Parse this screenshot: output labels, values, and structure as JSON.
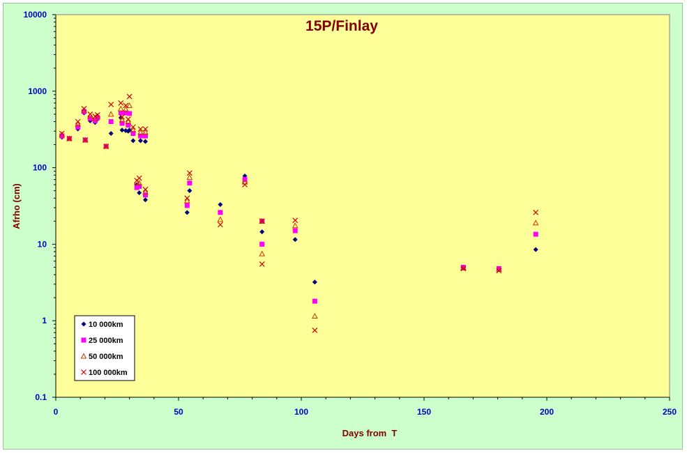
{
  "chart_data": {
    "type": "scatter",
    "title": "15P/Finlay",
    "xlabel": "Days from  T",
    "ylabel": "Afrho (cm)",
    "xlim": [
      0,
      250
    ],
    "ylim": [
      0.1,
      10000
    ],
    "yscale": "log",
    "xticks": [
      0,
      50,
      100,
      150,
      200,
      250
    ],
    "yticks": [
      0.1,
      1,
      10,
      100,
      1000,
      10000
    ],
    "ytick_labels": [
      "0.1",
      "1",
      "10",
      "100",
      "1000",
      "10000"
    ],
    "grid": false,
    "legend_position": "bottom-left",
    "plot_background": "#ffff99",
    "outer_background": "#ccffcc",
    "series": [
      {
        "name": "10 000km",
        "marker": "diamond",
        "color": "#000080",
        "points": [
          [
            2.5,
            250
          ],
          [
            5.5,
            240
          ],
          [
            9,
            320
          ],
          [
            11.5,
            520
          ],
          [
            12,
            230
          ],
          [
            14,
            410
          ],
          [
            16,
            390
          ],
          [
            17,
            430
          ],
          [
            20.5,
            190
          ],
          [
            22.5,
            280
          ],
          [
            26.5,
            450
          ],
          [
            27,
            310
          ],
          [
            28.5,
            305
          ],
          [
            29.5,
            300
          ],
          [
            30,
            310
          ],
          [
            31.5,
            225
          ],
          [
            33,
            60
          ],
          [
            34,
            47
          ],
          [
            34.5,
            225
          ],
          [
            36.5,
            220
          ],
          [
            36.5,
            38
          ],
          [
            53.5,
            26
          ],
          [
            54.5,
            50
          ],
          [
            67,
            33
          ],
          [
            77,
            78
          ],
          [
            84,
            14.5
          ],
          [
            97.5,
            11.5
          ],
          [
            105.5,
            3.2
          ],
          [
            166,
            5
          ],
          [
            180.5,
            4.8
          ],
          [
            195.5,
            8.5
          ]
        ]
      },
      {
        "name": "25 000km",
        "marker": "square",
        "color": "#ff00ff",
        "points": [
          [
            2.5,
            260
          ],
          [
            5.5,
            240
          ],
          [
            9,
            340
          ],
          [
            11.5,
            540
          ],
          [
            12,
            230
          ],
          [
            14,
            440
          ],
          [
            16,
            410
          ],
          [
            17,
            450
          ],
          [
            20.5,
            190
          ],
          [
            22.5,
            400
          ],
          [
            26.5,
            520
          ],
          [
            27,
            380
          ],
          [
            28.5,
            520
          ],
          [
            29.5,
            360
          ],
          [
            30,
            510
          ],
          [
            31.5,
            280
          ],
          [
            33,
            55
          ],
          [
            34,
            57
          ],
          [
            34.5,
            260
          ],
          [
            36.5,
            260
          ],
          [
            36.5,
            44
          ],
          [
            53.5,
            32
          ],
          [
            54.5,
            63
          ],
          [
            67,
            26
          ],
          [
            77,
            70
          ],
          [
            84,
            10
          ],
          [
            84,
            20
          ],
          [
            97.5,
            15
          ],
          [
            105.5,
            1.8
          ],
          [
            166,
            5
          ],
          [
            180.5,
            4.8
          ],
          [
            195.5,
            13.5
          ]
        ]
      },
      {
        "name": "50 000km",
        "marker": "triangle",
        "color": "#cc3300",
        "points": [
          [
            2.5,
            270
          ],
          [
            5.5,
            240
          ],
          [
            9,
            370
          ],
          [
            11.5,
            560
          ],
          [
            12,
            230
          ],
          [
            14,
            470
          ],
          [
            16,
            440
          ],
          [
            17,
            470
          ],
          [
            20.5,
            190
          ],
          [
            22.5,
            500
          ],
          [
            26.5,
            590
          ],
          [
            27,
            420
          ],
          [
            28.5,
            580
          ],
          [
            29.5,
            400
          ],
          [
            30,
            650
          ],
          [
            31.5,
            310
          ],
          [
            33,
            65
          ],
          [
            34,
            63
          ],
          [
            34.5,
            290
          ],
          [
            36.5,
            290
          ],
          [
            36.5,
            48
          ],
          [
            53.5,
            37
          ],
          [
            54.5,
            75
          ],
          [
            67,
            21
          ],
          [
            77,
            65
          ],
          [
            84,
            7.5
          ],
          [
            84,
            20
          ],
          [
            97.5,
            17.5
          ],
          [
            105.5,
            1.15
          ],
          [
            166,
            4.9
          ],
          [
            180.5,
            4.7
          ],
          [
            195.5,
            19
          ]
        ]
      },
      {
        "name": "100 000km",
        "marker": "cross",
        "color": "#cc0000",
        "points": [
          [
            2.5,
            280
          ],
          [
            5.5,
            240
          ],
          [
            9,
            400
          ],
          [
            11.5,
            590
          ],
          [
            12,
            230
          ],
          [
            14,
            500
          ],
          [
            16,
            470
          ],
          [
            17,
            490
          ],
          [
            20.5,
            190
          ],
          [
            22.5,
            670
          ],
          [
            26.5,
            700
          ],
          [
            27,
            460
          ],
          [
            28.5,
            650
          ],
          [
            29.5,
            430
          ],
          [
            30,
            850
          ],
          [
            31.5,
            340
          ],
          [
            33,
            68
          ],
          [
            34,
            73
          ],
          [
            34.5,
            320
          ],
          [
            36.5,
            320
          ],
          [
            36.5,
            52
          ],
          [
            53.5,
            40
          ],
          [
            54.5,
            85
          ],
          [
            67,
            18
          ],
          [
            77,
            60
          ],
          [
            84,
            5.5
          ],
          [
            84,
            20
          ],
          [
            97.5,
            20.5
          ],
          [
            105.5,
            0.75
          ],
          [
            166,
            4.8
          ],
          [
            180.5,
            4.5
          ],
          [
            195.5,
            26
          ]
        ]
      }
    ]
  }
}
